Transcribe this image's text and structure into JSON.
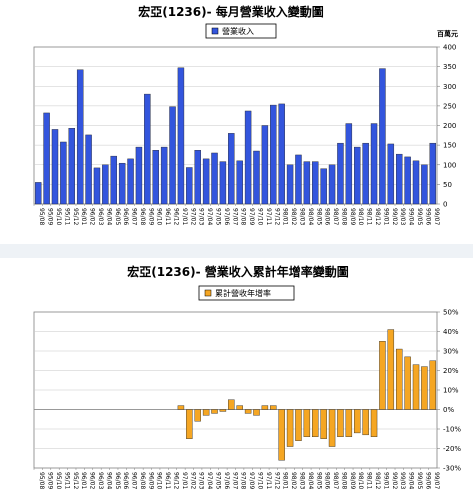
{
  "chart_data": [
    {
      "type": "bar",
      "title": "宏亞(1236)- 每月營業收入變動圖",
      "legend": "營業收入",
      "unit_label": "百萬元",
      "color": "#3355dd",
      "ylim": [
        0,
        400
      ],
      "yticks": [
        0,
        50,
        100,
        150,
        200,
        250,
        300,
        350,
        400
      ],
      "grid": true,
      "categories": [
        "95/08",
        "95/09",
        "95/10",
        "95/11",
        "95/12",
        "96/01",
        "96/02",
        "96/03",
        "96/04",
        "96/05",
        "96/06",
        "96/07",
        "96/08",
        "96/09",
        "96/10",
        "96/11",
        "96/12",
        "97/01",
        "97/02",
        "97/03",
        "97/04",
        "97/05",
        "97/06",
        "97/07",
        "97/08",
        "97/09",
        "97/10",
        "97/11",
        "97/12",
        "98/01",
        "98/02",
        "98/03",
        "98/04",
        "98/05",
        "98/06",
        "98/07",
        "98/08",
        "98/09",
        "98/10",
        "98/11",
        "98/12",
        "99/01",
        "99/02",
        "99/03",
        "99/04",
        "99/05",
        "99/06",
        "99/07"
      ],
      "values": [
        55,
        232,
        190,
        158,
        193,
        342,
        176,
        92,
        100,
        122,
        104,
        115,
        145,
        280,
        137,
        145,
        248,
        347,
        93,
        137,
        115,
        130,
        108,
        180,
        110,
        237,
        135,
        200,
        252,
        255,
        100,
        125,
        108,
        108,
        90,
        100,
        155,
        205,
        145,
        155,
        205,
        345,
        153,
        127,
        120,
        110,
        100,
        155
      ]
    },
    {
      "type": "bar",
      "title": "宏亞(1236)- 營業收入累計年增率變動圖",
      "legend": "累計營收年增率",
      "color": "#f5a623",
      "ylim": [
        -30,
        50
      ],
      "yticks": [
        "-30%",
        "-20%",
        "-10%",
        "0%",
        "10%",
        "20%",
        "30%",
        "40%",
        "50%"
      ],
      "grid": true,
      "categories": [
        "95/08",
        "95/09",
        "95/10",
        "95/11",
        "95/12",
        "96/01",
        "96/02",
        "96/03",
        "96/04",
        "96/05",
        "96/06",
        "96/07",
        "96/08",
        "96/09",
        "96/10",
        "96/11",
        "96/12",
        "97/01",
        "97/02",
        "97/03",
        "97/04",
        "97/05",
        "97/06",
        "97/07",
        "97/08",
        "97/09",
        "97/10",
        "97/11",
        "97/12",
        "98/01",
        "98/02",
        "98/03",
        "98/04",
        "98/05",
        "98/06",
        "98/07",
        "98/08",
        "98/09",
        "98/10",
        "98/11",
        "98/12",
        "99/01",
        "99/02",
        "99/03",
        "99/04",
        "99/05",
        "99/06",
        "99/07"
      ],
      "values": [
        0,
        0,
        0,
        0,
        0,
        0,
        0,
        0,
        0,
        0,
        0,
        0,
        0,
        0,
        0,
        0,
        0,
        2,
        -15,
        -6,
        -3,
        -2,
        -1,
        5,
        2,
        -2,
        -3,
        2,
        2,
        -26,
        -19,
        -16,
        -14,
        -14,
        -15,
        -19,
        -14,
        -14,
        -12,
        -13,
        -14,
        35,
        41,
        31,
        27,
        23,
        22,
        25
      ]
    }
  ]
}
